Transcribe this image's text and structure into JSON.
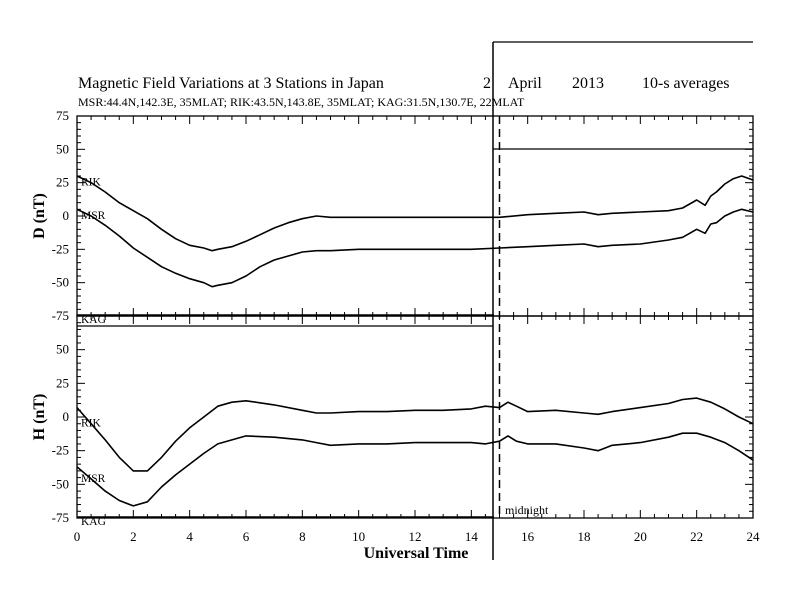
{
  "header": {
    "title": "Magnetic Field Variations at 3 Stations in Japan",
    "date_day": "2",
    "date_month": "April",
    "date_year": "2013",
    "averaging": "10-s averages",
    "stations": "MSR:44.4N,142.3E, 35MLAT;  RIK:43.5N,143.8E, 35MLAT;  KAG:31.5N,130.7E, 22MLAT"
  },
  "chart_data": [
    {
      "type": "line",
      "ylabel": "D (nT)",
      "xlabel": "",
      "xlim": [
        0,
        24
      ],
      "ylim": [
        -75,
        75
      ],
      "yticks": [
        75,
        50,
        25,
        0,
        -25,
        -50,
        -75
      ],
      "grid": false,
      "series": [
        {
          "name": "RIK",
          "x": [
            0,
            0.5,
            1,
            1.5,
            2,
            2.5,
            3,
            3.5,
            4,
            4.5,
            4.8,
            5,
            5.5,
            6,
            6.5,
            7,
            7.5,
            8,
            8.5,
            9,
            10,
            11,
            12,
            13,
            14,
            15,
            16,
            17,
            18,
            18.5,
            19,
            20,
            21,
            21.5,
            22,
            22.3,
            22.5,
            22.7,
            23,
            23.3,
            23.6,
            24
          ],
          "y": [
            30,
            25,
            18,
            10,
            4,
            -2,
            -10,
            -17,
            -22,
            -24,
            -26,
            -25,
            -23,
            -19,
            -14,
            -9,
            -5,
            -2,
            0,
            -1,
            -1,
            -1,
            -1,
            -1,
            -1,
            -1,
            1,
            2,
            3,
            1,
            2,
            3,
            4,
            6,
            12,
            8,
            15,
            18,
            24,
            28,
            30,
            27
          ]
        },
        {
          "name": "MSR",
          "x": [
            0,
            0.5,
            1,
            1.5,
            2,
            2.5,
            3,
            3.5,
            4,
            4.5,
            4.8,
            5,
            5.5,
            6,
            6.5,
            7,
            7.5,
            8,
            8.5,
            9,
            10,
            11,
            12,
            13,
            14,
            15,
            16,
            17,
            18,
            18.5,
            19,
            20,
            21,
            21.5,
            22,
            22.3,
            22.5,
            22.7,
            23,
            23.3,
            23.6,
            24
          ],
          "y": [
            5,
            0,
            -7,
            -15,
            -24,
            -31,
            -38,
            -43,
            -47,
            -50,
            -53,
            -52,
            -50,
            -45,
            -38,
            -33,
            -30,
            -27,
            -26,
            -26,
            -25,
            -25,
            -25,
            -25,
            -25,
            -24,
            -23,
            -22,
            -21,
            -23,
            -22,
            -21,
            -18,
            -16,
            -10,
            -13,
            -6,
            -5,
            0,
            3,
            5,
            3
          ]
        },
        {
          "name": "KAG",
          "x": [
            0,
            1,
            2,
            3,
            4,
            5,
            6,
            7,
            8,
            9,
            10,
            11,
            12,
            13,
            14,
            14.8
          ],
          "y": [
            -76,
            -76,
            -76,
            -76,
            -76,
            -76,
            -76,
            -76,
            -76,
            -76,
            -76,
            -76,
            -76,
            -76,
            -76,
            -76
          ]
        }
      ]
    },
    {
      "type": "line",
      "ylabel": "H (nT)",
      "xlabel": "Universal Time",
      "xlim": [
        0,
        24
      ],
      "ylim": [
        -75,
        75
      ],
      "yticks": [
        50,
        25,
        0,
        -25,
        -50,
        -75
      ],
      "xticks": [
        0,
        2,
        4,
        6,
        8,
        10,
        12,
        14,
        16,
        18,
        20,
        22,
        24
      ],
      "grid": false,
      "annotation": "midnight",
      "midnight_x": 15,
      "series": [
        {
          "name": "RIK",
          "x": [
            0,
            0.5,
            1,
            1.5,
            2,
            2.5,
            3,
            3.5,
            4,
            4.5,
            5,
            5.5,
            6,
            7,
            8,
            8.5,
            9,
            10,
            11,
            12,
            13,
            14,
            14.5,
            15,
            15.3,
            15.6,
            16,
            17,
            18,
            18.5,
            19,
            20,
            21,
            21.5,
            22,
            22.5,
            23,
            23.5,
            24
          ],
          "y": [
            7,
            -5,
            -17,
            -30,
            -40,
            -40,
            -30,
            -18,
            -8,
            0,
            8,
            11,
            12,
            9,
            5,
            3,
            3,
            4,
            4,
            5,
            5,
            6,
            8,
            7,
            11,
            8,
            4,
            5,
            3,
            2,
            4,
            7,
            10,
            13,
            14,
            11,
            6,
            0,
            -5
          ]
        },
        {
          "name": "MSR",
          "x": [
            0,
            0.5,
            1,
            1.5,
            2,
            2.5,
            3,
            3.5,
            4,
            4.5,
            5,
            5.5,
            6,
            7,
            8,
            8.5,
            9,
            10,
            11,
            12,
            13,
            14,
            14.5,
            15,
            15.3,
            15.6,
            16,
            17,
            18,
            18.5,
            19,
            20,
            21,
            21.5,
            22,
            22.5,
            23,
            23.5,
            24
          ],
          "y": [
            -37,
            -46,
            -55,
            -62,
            -66,
            -63,
            -52,
            -43,
            -35,
            -27,
            -20,
            -17,
            -14,
            -15,
            -17,
            -19,
            -21,
            -20,
            -20,
            -19,
            -19,
            -19,
            -20,
            -18,
            -14,
            -18,
            -20,
            -20,
            -23,
            -25,
            -21,
            -19,
            -15,
            -12,
            -12,
            -15,
            -19,
            -25,
            -32
          ]
        },
        {
          "name": "KAG",
          "x": [
            0,
            1,
            2,
            3,
            4,
            5,
            6,
            7,
            8,
            9,
            10,
            11,
            12,
            13,
            14,
            14.8
          ],
          "y": [
            -80,
            -80,
            -80,
            -80,
            -80,
            -80,
            -80,
            -80,
            -80,
            -80,
            -80,
            -80,
            -80,
            -80,
            -80,
            -80
          ]
        }
      ]
    }
  ]
}
